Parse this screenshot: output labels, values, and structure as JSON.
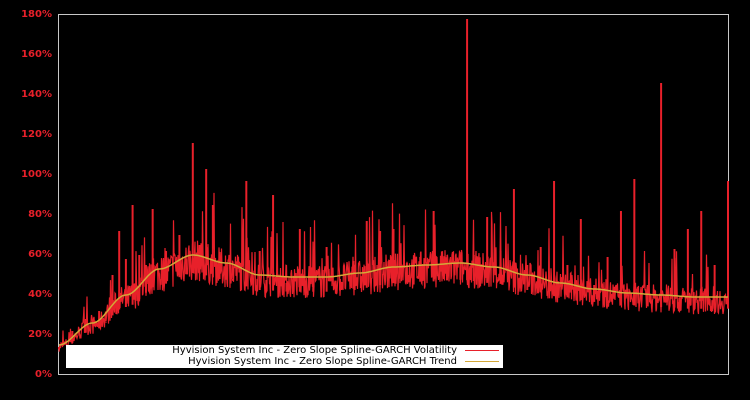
{
  "chart_data": {
    "type": "line",
    "title": "",
    "xlabel": "",
    "ylabel": "",
    "ylim": [
      0,
      180
    ],
    "y_ticks": [
      "0%",
      "20%",
      "40%",
      "60%",
      "80%",
      "100%",
      "120%",
      "140%",
      "160%",
      "180%"
    ],
    "grid": false,
    "legend_position": "bottom-left inside",
    "colors": {
      "background": "#000000",
      "axis": "#c8c8c8",
      "tick_label": "#e8202a",
      "volatility": "#e8202a",
      "trend": "#d4a838"
    },
    "series": [
      {
        "name": "Hyvision System Inc - Zero Slope Spline-GARCH Volatility",
        "x_frac": [
          0,
          0.02,
          0.04,
          0.06,
          0.07,
          0.08,
          0.09,
          0.1,
          0.11,
          0.12,
          0.13,
          0.14,
          0.16,
          0.18,
          0.19,
          0.2,
          0.21,
          0.22,
          0.23,
          0.24,
          0.25,
          0.26,
          0.28,
          0.3,
          0.32,
          0.34,
          0.36,
          0.38,
          0.4,
          0.42,
          0.44,
          0.46,
          0.48,
          0.5,
          0.52,
          0.54,
          0.56,
          0.58,
          0.6,
          0.61,
          0.62,
          0.64,
          0.66,
          0.68,
          0.7,
          0.72,
          0.74,
          0.76,
          0.78,
          0.8,
          0.82,
          0.84,
          0.86,
          0.88,
          0.9,
          0.92,
          0.94,
          0.96,
          0.98,
          1.0
        ],
        "values": [
          14,
          22,
          28,
          32,
          26,
          50,
          72,
          58,
          85,
          60,
          55,
          83,
          62,
          70,
          58,
          116,
          65,
          103,
          85,
          60,
          56,
          48,
          97,
          62,
          90,
          46,
          73,
          52,
          64,
          48,
          57,
          77,
          72,
          73,
          56,
          59,
          82,
          55,
          57,
          178,
          60,
          79,
          62,
          93,
          55,
          64,
          97,
          55,
          78,
          45,
          59,
          82,
          98,
          45,
          146,
          63,
          73,
          82,
          55,
          97
        ]
      },
      {
        "name": "Hyvision System Inc - Zero Slope Spline-GARCH Trend",
        "x_frac": [
          0,
          0.05,
          0.1,
          0.15,
          0.2,
          0.25,
          0.3,
          0.35,
          0.4,
          0.45,
          0.5,
          0.55,
          0.6,
          0.65,
          0.7,
          0.75,
          0.8,
          0.85,
          0.9,
          0.95,
          1.0
        ],
        "values": [
          15,
          26,
          40,
          53,
          60,
          56,
          50,
          49,
          49,
          51,
          54,
          55,
          56,
          54,
          50,
          46,
          43,
          41,
          40,
          39,
          39
        ]
      }
    ]
  },
  "legend": {
    "items": [
      {
        "label": "Hyvision System Inc - Zero Slope Spline-GARCH Volatility",
        "color": "#e8202a"
      },
      {
        "label": "Hyvision System Inc - Zero Slope Spline-GARCH Trend",
        "color": "#d4a838"
      }
    ]
  }
}
